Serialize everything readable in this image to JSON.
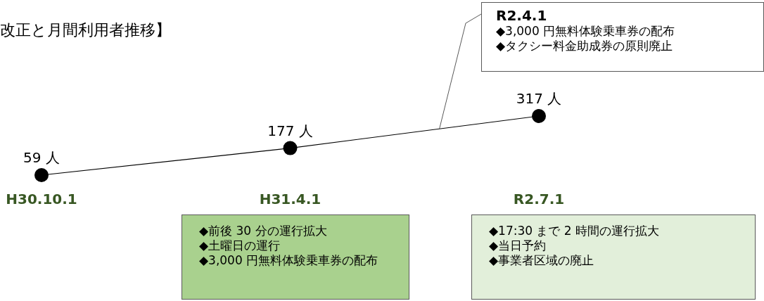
{
  "chart_data": {
    "type": "line",
    "title": "改正と月間利用者推移】",
    "categories": [
      "H30.10.1",
      "H31.4.1",
      "R2.7.1"
    ],
    "series": [
      {
        "color": "#000000",
        "values": [
          59,
          177,
          317
        ],
        "value_labels": [
          "59 人",
          "177 人",
          "317 人"
        ]
      }
    ],
    "marker": "circle",
    "line_style": "solid",
    "annotations": [
      "R2.4.1",
      "◆3,000 円無料体験乗車券の配布\n◆タクシー料金助成券の原則廃止",
      "◆前後 30 分の運行拡大\n◆土曜日の運行\n◆3,000 円無料体験乗車券の配布",
      "◆17:30 まで 2 時間の運行拡大\n◆当日予約\n◆事業者区域の廃止"
    ]
  }
}
